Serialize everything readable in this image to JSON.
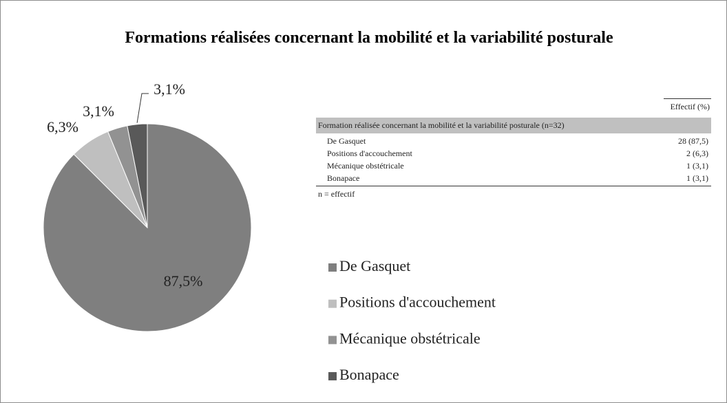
{
  "chart_data": {
    "type": "pie",
    "title": "Formations réalisées concernant la mobilité et la variabilité posturale",
    "categories": [
      "De Gasquet",
      "Positions d'accouchement",
      "Mécanique obstétricale",
      "Bonapace"
    ],
    "values": [
      87.5,
      6.3,
      3.1,
      3.1
    ],
    "value_labels": [
      "87,5%",
      "6,3%",
      "3,1%",
      "3,1%"
    ],
    "colors": [
      "#7f7f7f",
      "#bfbfbf",
      "#929292",
      "#595959"
    ],
    "legend": "right"
  },
  "table": {
    "header": "Effectif (%)",
    "group": "Formation réalisée concernant la mobilité et la variabilité posturale (n=32)",
    "rows": [
      [
        "De Gasquet",
        "28 (87,5)"
      ],
      [
        "Positions d'accouchement",
        "2 (6,3)"
      ],
      [
        "Mécanique obstétricale",
        "1 (3,1)"
      ],
      [
        "Bonapace",
        "1 (3,1)"
      ]
    ],
    "note": "n = effectif"
  }
}
